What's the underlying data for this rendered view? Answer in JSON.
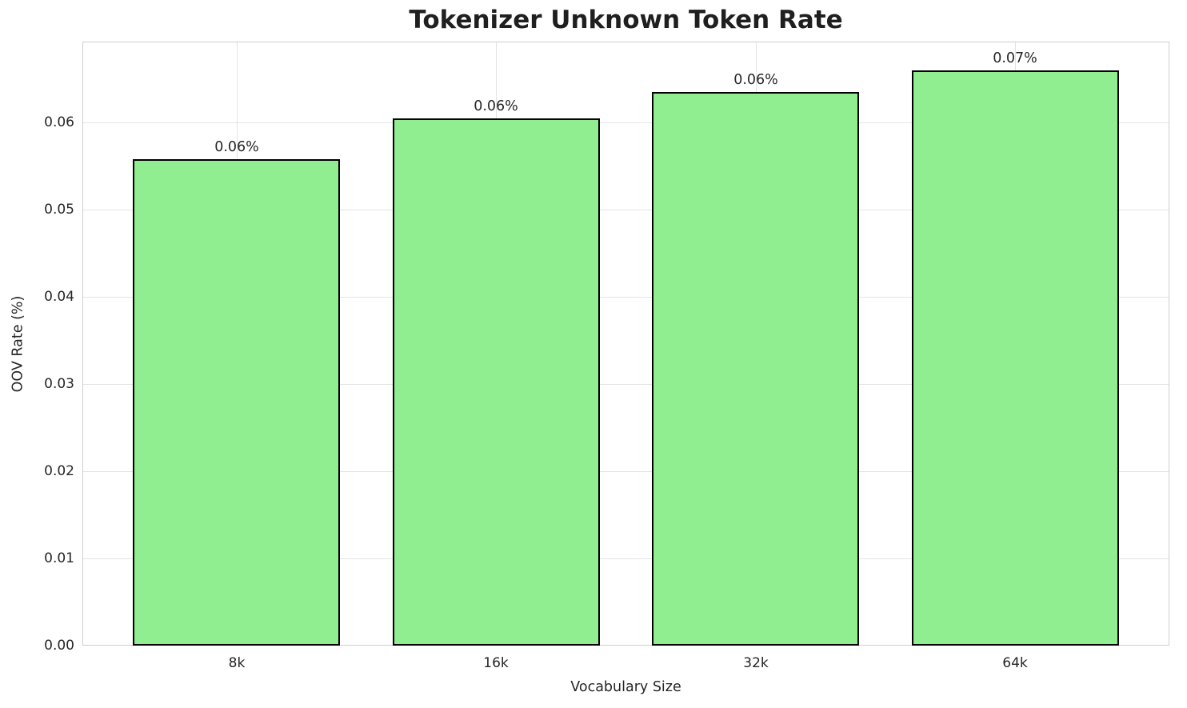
{
  "chart_data": {
    "type": "bar",
    "title": "Tokenizer Unknown Token Rate",
    "xlabel": "Vocabulary Size",
    "ylabel": "OOV Rate (%)",
    "categories": [
      "8k",
      "16k",
      "32k",
      "64k"
    ],
    "values": [
      0.0558,
      0.0605,
      0.0635,
      0.066
    ],
    "bar_labels": [
      "0.06%",
      "0.06%",
      "0.06%",
      "0.07%"
    ],
    "ylim": [
      0,
      0.0693
    ],
    "yticks": [
      0.0,
      0.01,
      0.02,
      0.03,
      0.04,
      0.05,
      0.06
    ],
    "ytick_labels": [
      "0.00",
      "0.01",
      "0.02",
      "0.03",
      "0.04",
      "0.05",
      "0.06"
    ],
    "grid": true,
    "legend": "none",
    "bar_color": "#90EE90",
    "bar_edge_color": "#000000",
    "grid_color": "#e3e3e3",
    "spine_color": "#cfcfcf",
    "text_color": "#262626",
    "title_color": "#1f1f1f",
    "background_color": "#ffffff"
  }
}
